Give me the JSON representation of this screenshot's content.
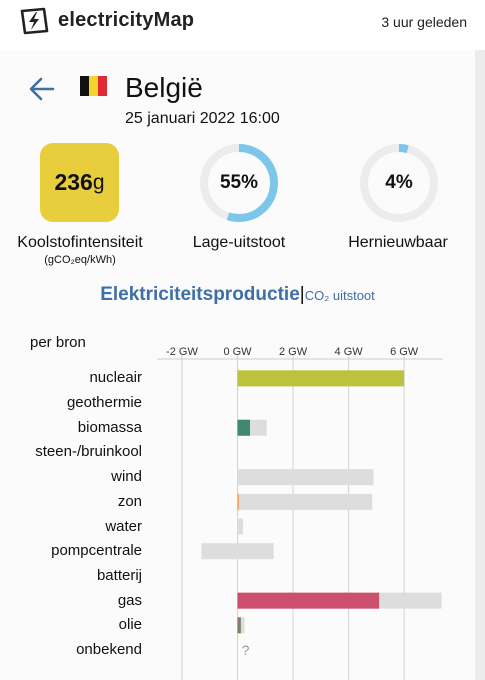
{
  "app": {
    "name": "electricityMap",
    "updated": "3 uur geleden"
  },
  "zone": {
    "name": "België",
    "datetime": "25 januari 2022 16:00",
    "flag_colors": [
      "#111111",
      "#f6d22c",
      "#e02a36"
    ]
  },
  "stats": {
    "carbon_intensity": {
      "value": "236",
      "unit": "g",
      "label": "Koolstofintensiteit",
      "sublabel": "(gCO₂eq/kWh)",
      "color": "#e8cd3c"
    },
    "low_carbon": {
      "value": "55%",
      "fraction": 0.55,
      "label": "Lage-uitstoot"
    },
    "renewable": {
      "value": "4%",
      "fraction": 0.04,
      "label": "Hernieuwbaar"
    },
    "gauge_color": "#7dc6e9",
    "gauge_track": "#ececec"
  },
  "tabs": {
    "production": "Elektriciteitsproductie",
    "separator": "|",
    "emissions": "CO₂ uitstoot"
  },
  "chart_data": {
    "type": "bar",
    "title": "Elektriciteitsproductie",
    "subtitle": "per bron",
    "x_unit": "GW",
    "xlim": [
      -2.9,
      7.4
    ],
    "ticks": [
      -2,
      0,
      2,
      4,
      6
    ],
    "tick_labels": [
      "-2 GW",
      "0 GW",
      "2 GW",
      "4 GW",
      "6 GW"
    ],
    "grid": true,
    "categories": [
      "nucleair",
      "geothermie",
      "biomassa",
      "steen-/bruinkool",
      "wind",
      "zon",
      "water",
      "pompcentrale",
      "batterij",
      "gas",
      "olie",
      "onbekend"
    ],
    "series": [
      {
        "values": [
          6.0,
          null,
          0.45,
          null,
          0.0,
          0.05,
          0.0,
          0.0,
          null,
          5.1,
          0.12,
          null
        ]
      }
    ],
    "capacity": [
      [
        0,
        6.0
      ],
      null,
      [
        0,
        1.05
      ],
      null,
      [
        0,
        4.9
      ],
      [
        0,
        4.85
      ],
      [
        0,
        0.2
      ],
      [
        -1.3,
        1.3
      ],
      null,
      [
        0,
        7.35
      ],
      [
        0,
        0.25
      ],
      null
    ],
    "bar_colors": [
      "#bcc23b",
      null,
      "#3e8a6f",
      null,
      "#a7d8e6",
      "#f0a36a",
      "#4d8bd0",
      "#4d8bd0",
      null,
      "#cd4f6e",
      "#867d66",
      null
    ],
    "capacity_color": "#dddddd",
    "unknown_marker": "?"
  }
}
